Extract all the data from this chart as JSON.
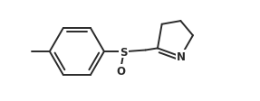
{
  "bg_color": "#ffffff",
  "line_color": "#2a2a2a",
  "line_width": 1.4,
  "font_size_atom": 8.5,
  "S_label": "S",
  "O_label": "O",
  "N_label": "N",
  "figsize": [
    2.87,
    1.13
  ],
  "dpi": 100,
  "xlim": [
    0.0,
    9.5
  ],
  "ylim": [
    0.5,
    4.0
  ]
}
